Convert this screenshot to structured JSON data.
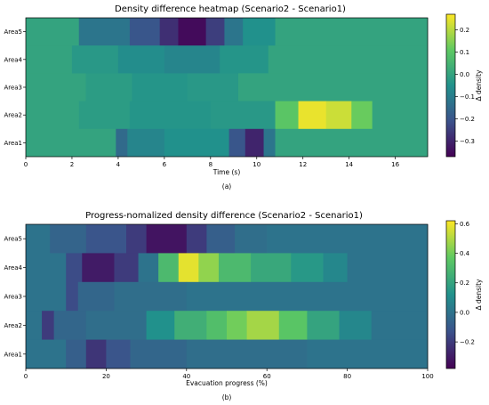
{
  "colormap_stops": [
    "#440154",
    "#3b528b",
    "#21918c",
    "#5ec962",
    "#fde725"
  ],
  "chart_data": [
    {
      "type": "heatmap",
      "title": "Density difference heatmap (Scenario2 - Scenario1)",
      "xlabel": "Time (s)",
      "ylabel": "",
      "xlim": [
        0,
        17.4
      ],
      "xticks": [
        0,
        2,
        4,
        6,
        8,
        10,
        12,
        14,
        16
      ],
      "rows": [
        "Area5",
        "Area4",
        "Area3",
        "Area2",
        "Area1"
      ],
      "vmin": -0.37,
      "vmax": 0.27,
      "colorbar_ticks": [
        0.2,
        0.1,
        0.0,
        -0.1,
        -0.2,
        -0.3
      ],
      "colorbar_label": "Δ density",
      "caption": "(a)",
      "cells": [
        {
          "row": "Area5",
          "segments": [
            [
              0,
              2.3,
              0.0
            ],
            [
              2.3,
              4.5,
              -0.12
            ],
            [
              4.5,
              5.8,
              -0.2
            ],
            [
              5.8,
              6.6,
              -0.28
            ],
            [
              6.6,
              7.8,
              -0.35
            ],
            [
              7.8,
              8.6,
              -0.25
            ],
            [
              8.6,
              9.4,
              -0.12
            ],
            [
              9.4,
              10.8,
              -0.05
            ],
            [
              10.8,
              17.4,
              0.0
            ]
          ]
        },
        {
          "row": "Area4",
          "segments": [
            [
              0,
              2.0,
              0.0
            ],
            [
              2.0,
              4.0,
              -0.03
            ],
            [
              4.0,
              6.0,
              -0.06
            ],
            [
              6.0,
              8.4,
              -0.08
            ],
            [
              8.4,
              10.5,
              -0.04
            ],
            [
              10.5,
              17.4,
              0.0
            ]
          ]
        },
        {
          "row": "Area3",
          "segments": [
            [
              0,
              2.6,
              0.0
            ],
            [
              2.6,
              4.6,
              -0.02
            ],
            [
              4.6,
              7.0,
              -0.04
            ],
            [
              7.0,
              9.2,
              -0.03
            ],
            [
              9.2,
              17.4,
              0.0
            ]
          ]
        },
        {
          "row": "Area2",
          "segments": [
            [
              0,
              2.3,
              0.0
            ],
            [
              2.3,
              4.5,
              -0.02
            ],
            [
              4.5,
              8.0,
              -0.04
            ],
            [
              8.0,
              10.8,
              -0.03
            ],
            [
              10.8,
              11.8,
              0.1
            ],
            [
              11.8,
              13.0,
              0.25
            ],
            [
              13.0,
              14.1,
              0.22
            ],
            [
              14.1,
              15.0,
              0.12
            ],
            [
              15.0,
              17.4,
              0.0
            ]
          ]
        },
        {
          "row": "Area1",
          "segments": [
            [
              0,
              3.9,
              0.0
            ],
            [
              3.9,
              4.4,
              -0.15
            ],
            [
              4.4,
              6.0,
              -0.08
            ],
            [
              6.0,
              8.8,
              -0.05
            ],
            [
              8.8,
              9.5,
              -0.2
            ],
            [
              9.5,
              10.3,
              -0.3
            ],
            [
              10.3,
              10.8,
              -0.12
            ],
            [
              10.8,
              17.4,
              0.0
            ]
          ]
        }
      ]
    },
    {
      "type": "heatmap",
      "title": "Progress-nomalized density difference (Scenario2 - Scenario1)",
      "xlabel": "Evacuation progress (%)",
      "ylabel": "",
      "xlim": [
        0,
        100
      ],
      "xticks": [
        0,
        20,
        40,
        60,
        80,
        100
      ],
      "rows": [
        "Area5",
        "Area4",
        "Area3",
        "Area2",
        "Area1"
      ],
      "vmin": -0.38,
      "vmax": 0.62,
      "colorbar_ticks": [
        0.6,
        0.4,
        0.2,
        0.0,
        -0.2
      ],
      "colorbar_label": "Δ density",
      "caption": "(b)",
      "cells": [
        {
          "row": "Area5",
          "segments": [
            [
              0,
              6,
              0.0
            ],
            [
              6,
              15,
              -0.06
            ],
            [
              15,
              25,
              -0.12
            ],
            [
              25,
              30,
              -0.2
            ],
            [
              30,
              40,
              -0.32
            ],
            [
              40,
              45,
              -0.2
            ],
            [
              45,
              52,
              -0.08
            ],
            [
              52,
              60,
              -0.02
            ],
            [
              60,
              100,
              0.0
            ]
          ]
        },
        {
          "row": "Area4",
          "segments": [
            [
              0,
              10,
              0.0
            ],
            [
              10,
              14,
              -0.15
            ],
            [
              14,
              22,
              -0.3
            ],
            [
              22,
              28,
              -0.2
            ],
            [
              28,
              33,
              0.0
            ],
            [
              33,
              38,
              0.3
            ],
            [
              38,
              43,
              0.58
            ],
            [
              43,
              48,
              0.45
            ],
            [
              48,
              56,
              0.3
            ],
            [
              56,
              66,
              0.22
            ],
            [
              66,
              74,
              0.15
            ],
            [
              74,
              80,
              0.08
            ],
            [
              80,
              100,
              0.0
            ]
          ]
        },
        {
          "row": "Area3",
          "segments": [
            [
              0,
              10,
              0.0
            ],
            [
              10,
              13,
              -0.15
            ],
            [
              13,
              22,
              -0.05
            ],
            [
              22,
              40,
              -0.02
            ],
            [
              40,
              100,
              0.0
            ]
          ]
        },
        {
          "row": "Area2",
          "segments": [
            [
              0,
              4,
              0.0
            ],
            [
              4,
              7,
              -0.2
            ],
            [
              7,
              15,
              -0.05
            ],
            [
              15,
              30,
              -0.02
            ],
            [
              30,
              37,
              0.12
            ],
            [
              37,
              45,
              0.25
            ],
            [
              45,
              50,
              0.32
            ],
            [
              50,
              55,
              0.4
            ],
            [
              55,
              63,
              0.48
            ],
            [
              63,
              70,
              0.35
            ],
            [
              70,
              78,
              0.2
            ],
            [
              78,
              86,
              0.08
            ],
            [
              86,
              100,
              0.0
            ]
          ]
        },
        {
          "row": "Area1",
          "segments": [
            [
              0,
              10,
              0.0
            ],
            [
              10,
              15,
              -0.08
            ],
            [
              15,
              20,
              -0.22
            ],
            [
              20,
              26,
              -0.12
            ],
            [
              26,
              40,
              -0.05
            ],
            [
              40,
              70,
              -0.02
            ],
            [
              70,
              100,
              0.0
            ]
          ]
        }
      ]
    }
  ]
}
